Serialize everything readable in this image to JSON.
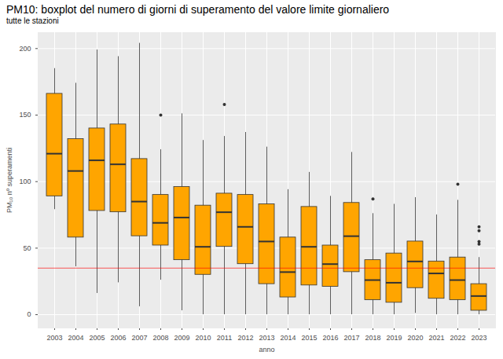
{
  "chart_data": {
    "type": "boxplot",
    "title": "PM10: boxplot del numero di giorni di superamento del valore limite giornaliero",
    "subtitle": "tutte le stazioni",
    "xlabel": "anno",
    "ylabel": "PM₁₀ nº superamenti",
    "categories": [
      "2003",
      "2004",
      "2005",
      "2006",
      "2007",
      "2008",
      "2009",
      "2010",
      "2011",
      "2012",
      "2013",
      "2014",
      "2015",
      "2016",
      "2017",
      "2018",
      "2019",
      "2020",
      "2021",
      "2022",
      "2023"
    ],
    "whisker_low": [
      79,
      36,
      16,
      24,
      6,
      26,
      3,
      0,
      0,
      0,
      0,
      0,
      0,
      0,
      0,
      0,
      0,
      1,
      0,
      0,
      0
    ],
    "q1": [
      89,
      58,
      78,
      77,
      59,
      52,
      41,
      30,
      51,
      38,
      23,
      13,
      22,
      21,
      32,
      11,
      9,
      20,
      12,
      11,
      3
    ],
    "median": [
      121,
      108,
      116,
      113,
      85,
      69,
      73,
      51,
      77,
      66,
      55,
      32,
      51,
      38,
      59,
      26,
      24,
      40,
      31,
      26,
      14
    ],
    "q3": [
      166,
      132,
      140,
      143,
      117,
      90,
      96,
      82,
      91,
      90,
      83,
      58,
      81,
      52,
      84,
      41,
      46,
      55,
      40,
      43,
      23
    ],
    "whisker_high": [
      185,
      174,
      199,
      194,
      204,
      124,
      151,
      131,
      134,
      137,
      126,
      94,
      107,
      89,
      122,
      76,
      83,
      88,
      75,
      86,
      43
    ],
    "outliers": [
      [],
      [],
      [],
      [],
      [],
      [
        150
      ],
      [],
      [],
      [
        158
      ],
      [],
      [],
      [],
      [],
      [],
      [],
      [
        87
      ],
      [],
      [],
      [],
      [
        98
      ],
      [
        53,
        55,
        63,
        66
      ]
    ],
    "color": "#FFA500",
    "reference_line": {
      "value": 35,
      "color": "#FF0000"
    },
    "ylim": [
      -10,
      212
    ],
    "yticks": [
      0,
      50,
      100,
      150,
      200
    ],
    "grid": true
  }
}
